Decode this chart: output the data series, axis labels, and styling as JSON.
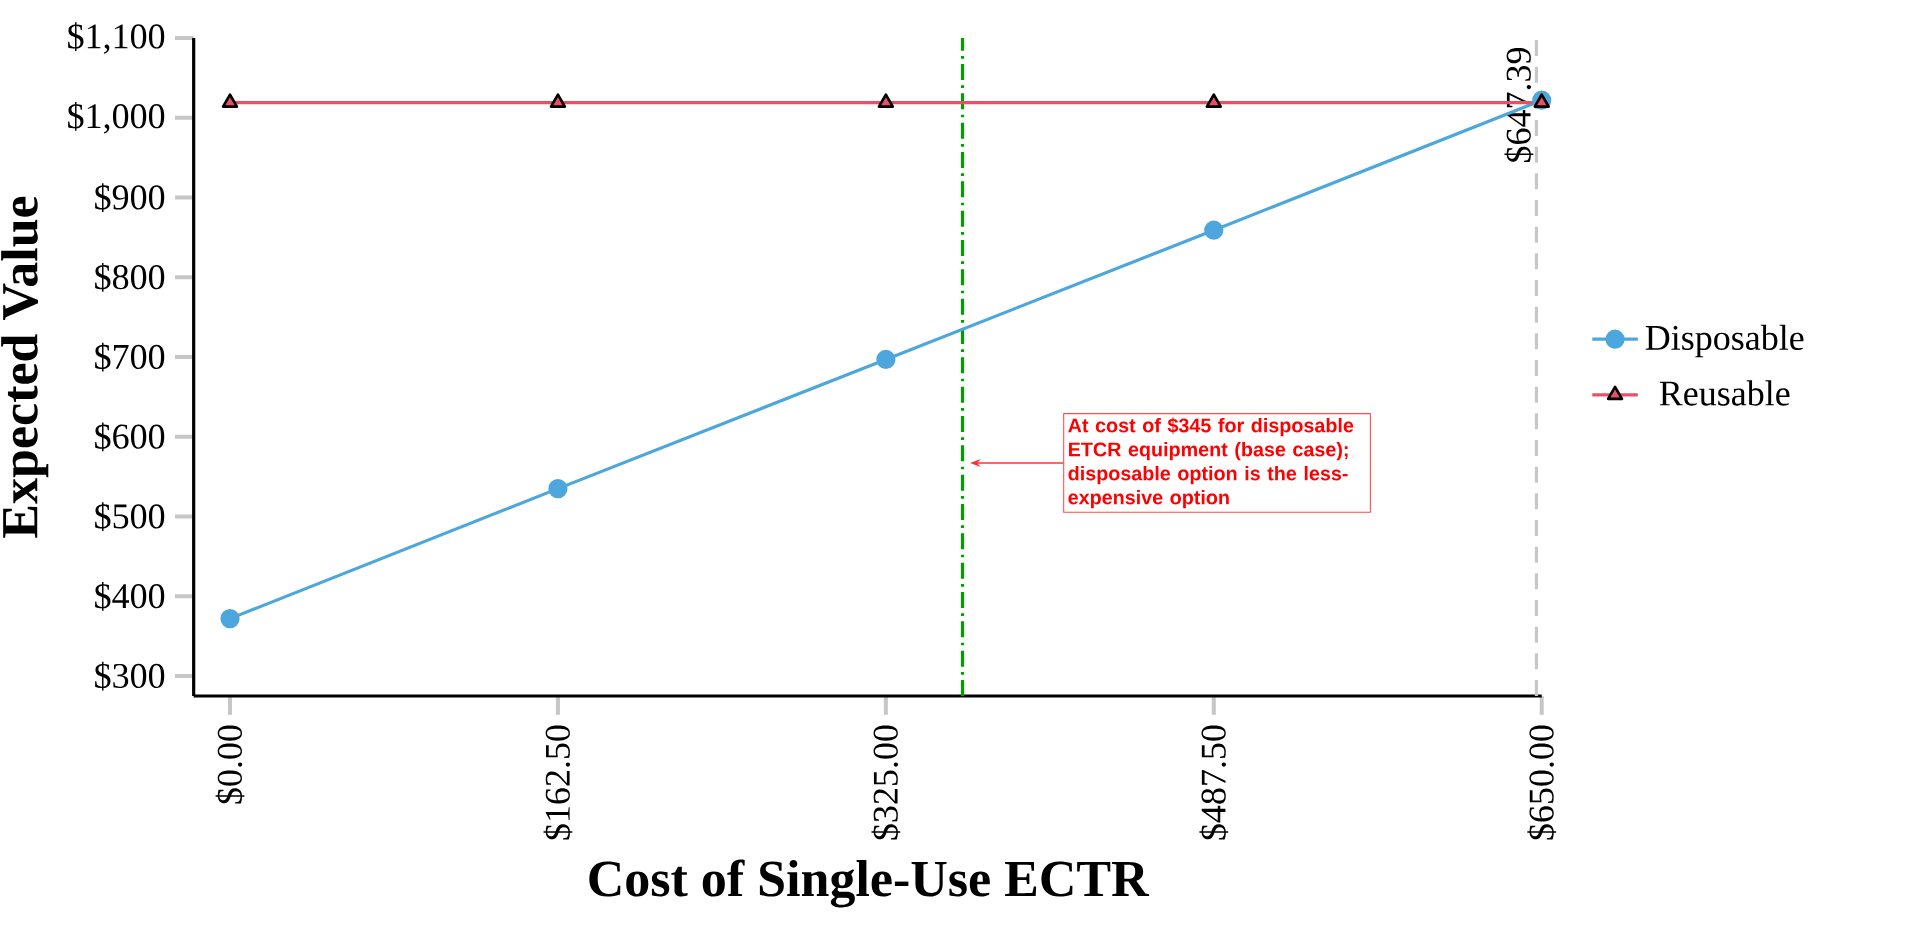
{
  "chart_data": {
    "type": "line",
    "xlabel": "Cost of Single-Use ECTR",
    "ylabel": "Expected Value",
    "x": [
      0,
      162.5,
      325,
      487.5,
      650
    ],
    "series": [
      {
        "name": "Disposable",
        "color": "#4da6dc",
        "marker": "circle",
        "values": [
          372,
          535,
          697,
          859,
          1022
        ]
      },
      {
        "name": "Reusable",
        "color": "#e8506a",
        "marker": "triangle",
        "values": [
          1019,
          1019,
          1019,
          1019,
          1019
        ]
      }
    ],
    "xlim": [
      -18,
      650
    ],
    "ylim": [
      275,
      1100
    ],
    "xticks": [
      {
        "value": 0,
        "label": "$0.00"
      },
      {
        "value": 162.5,
        "label": "$162.50"
      },
      {
        "value": 325,
        "label": "$325.00"
      },
      {
        "value": 487.5,
        "label": "$487.50"
      },
      {
        "value": 650,
        "label": "$650.00"
      }
    ],
    "yticks": [
      {
        "value": 300,
        "label": "$300"
      },
      {
        "value": 400,
        "label": "$400"
      },
      {
        "value": 500,
        "label": "$500"
      },
      {
        "value": 600,
        "label": "$600"
      },
      {
        "value": 700,
        "label": "$700"
      },
      {
        "value": 800,
        "label": "$800"
      },
      {
        "value": 900,
        "label": "$900"
      },
      {
        "value": 1000,
        "label": "$1,000"
      },
      {
        "value": 1100,
        "label": "$1,100"
      }
    ],
    "ref_lines": [
      {
        "axis": "x",
        "value": 363,
        "color": "#00a000",
        "line_style": "dashdot"
      },
      {
        "axis": "x",
        "value": 647.39,
        "label": "$647.39",
        "color": "#c8c8c8",
        "line_style": "dashed"
      }
    ],
    "annotations": [
      "At cost of $345 for disposable ETCR equipment (base case); disposable option is the less-expensive option"
    ],
    "grid": false,
    "legend": "right"
  }
}
